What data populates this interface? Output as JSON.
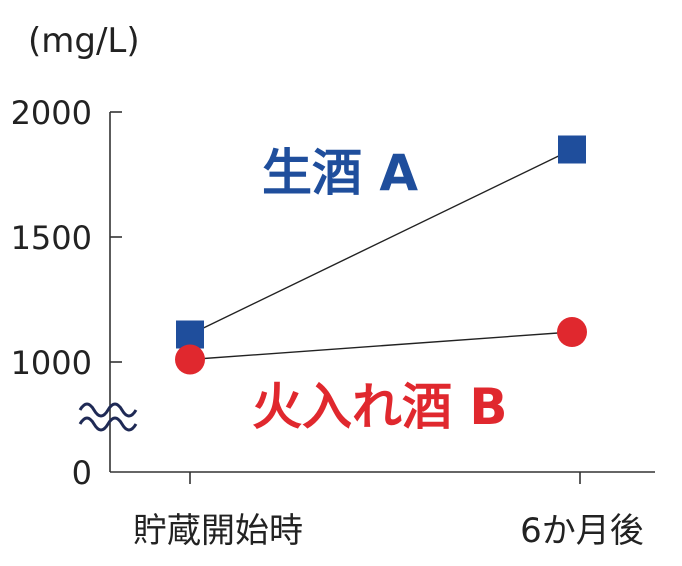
{
  "chart_data": {
    "type": "line",
    "unit_label": "(mg/L)",
    "categories": [
      "貯蔵開始時",
      "6か月後"
    ],
    "y_ticks": [
      "2000",
      "1500",
      "1000",
      "0"
    ],
    "axis_break": true,
    "ylim": [
      0,
      2000
    ],
    "series": [
      {
        "name": "生酒 A",
        "values": [
          1110,
          1850
        ],
        "color": "#1f4e9c",
        "marker": "square"
      },
      {
        "name": "火入れ酒 B",
        "values": [
          1010,
          1120
        ],
        "color": "#e0282e",
        "marker": "circle"
      }
    ]
  }
}
